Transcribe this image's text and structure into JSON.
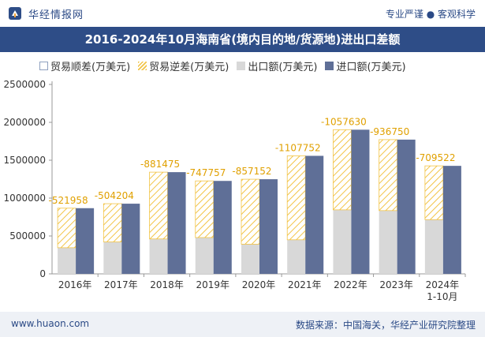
{
  "header": {
    "brand_name": "华经情报网",
    "slogan": "专业严谨 ● 客观科学"
  },
  "footer": {
    "url": "www.huaon.com",
    "source": "数据来源：中国海关，华经产业研究院整理"
  },
  "colors": {
    "title_bg": "#2e4d87",
    "import_bar": "#5f6f97",
    "export_bar": "#d8d8d8",
    "deficit_hatch": "#f2c447",
    "deficit_label": "#e0a000"
  },
  "chart_data": {
    "type": "bar",
    "title": "2016-2024年10月海南省(境内目的地/货源地)进出口差额",
    "categories": [
      "2016年",
      "2017年",
      "2018年",
      "2019年",
      "2020年",
      "2021年",
      "2022年",
      "2023年",
      "2024年\n1-10月"
    ],
    "series": [
      {
        "name": "贸易顺差(万美元)",
        "values": [
          0,
          0,
          0,
          0,
          0,
          0,
          0,
          0,
          0
        ]
      },
      {
        "name": "贸易逆差(万美元)",
        "values": [
          -521958,
          -504204,
          -881475,
          -747757,
          -857152,
          -1107752,
          -1057630,
          -936750,
          -709522
        ]
      },
      {
        "name": "出口额(万美元)",
        "values": [
          345000,
          422000,
          461000,
          479000,
          392000,
          450000,
          845000,
          835000,
          716000
        ]
      },
      {
        "name": "进口额(万美元)",
        "values": [
          866958,
          926204,
          1342475,
          1226757,
          1249152,
          1557752,
          1902630,
          1771750,
          1425522
        ]
      }
    ],
    "data_labels": [
      "-521958",
      "-504204",
      "-881475",
      "-747757",
      "-857152",
      "-1107752",
      "-1057630",
      "-936750",
      "-709522"
    ],
    "y_ticks": [
      "0",
      "500000",
      "1000000",
      "1500000",
      "2000000",
      "2500000"
    ],
    "ylim": [
      0,
      2500000
    ],
    "xlabel": "",
    "ylabel": "",
    "legend_position": "top",
    "grid": false
  }
}
